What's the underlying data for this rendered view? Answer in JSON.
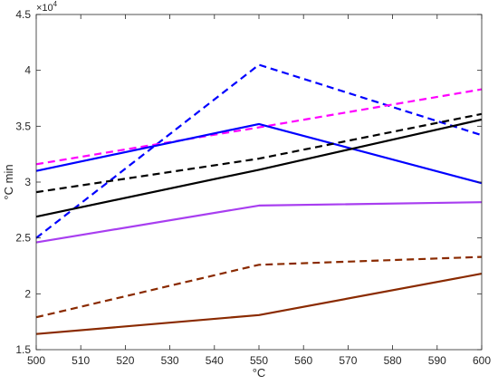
{
  "chart_data": {
    "type": "line",
    "title": "",
    "xlabel": "°C",
    "ylabel": "°C min",
    "y_multiplier_label": "×10",
    "y_multiplier_exponent": "4",
    "xlim": [
      500,
      600
    ],
    "ylim": [
      15000,
      45000
    ],
    "x_ticks": [
      500,
      510,
      520,
      530,
      540,
      550,
      560,
      570,
      580,
      590,
      600
    ],
    "y_ticks": [
      15000,
      20000,
      25000,
      30000,
      35000,
      40000,
      45000
    ],
    "y_tick_labels": [
      "1.5",
      "2",
      "2.5",
      "3",
      "3.5",
      "4",
      "4.5"
    ],
    "grid": false,
    "x": [
      500,
      550,
      600
    ],
    "series": [
      {
        "values": [
          25000,
          40500,
          34200
        ],
        "color": "#0000ff",
        "style": "dashed"
      },
      {
        "values": [
          31600,
          34900,
          38300
        ],
        "color": "#ff00ff",
        "style": "dashed"
      },
      {
        "values": [
          31000,
          35200,
          29900
        ],
        "color": "#0000ff",
        "style": "solid"
      },
      {
        "values": [
          29100,
          32100,
          36100
        ],
        "color": "#000000",
        "style": "dashed"
      },
      {
        "values": [
          26900,
          31100,
          35600
        ],
        "color": "#000000",
        "style": "solid"
      },
      {
        "values": [
          24600,
          27900,
          28200
        ],
        "color": "#a83ef0",
        "style": "solid"
      },
      {
        "values": [
          17900,
          22600,
          23300
        ],
        "color": "#8a2a00",
        "style": "dashed"
      },
      {
        "values": [
          16400,
          18100,
          21800
        ],
        "color": "#8a2a00",
        "style": "solid"
      }
    ]
  }
}
